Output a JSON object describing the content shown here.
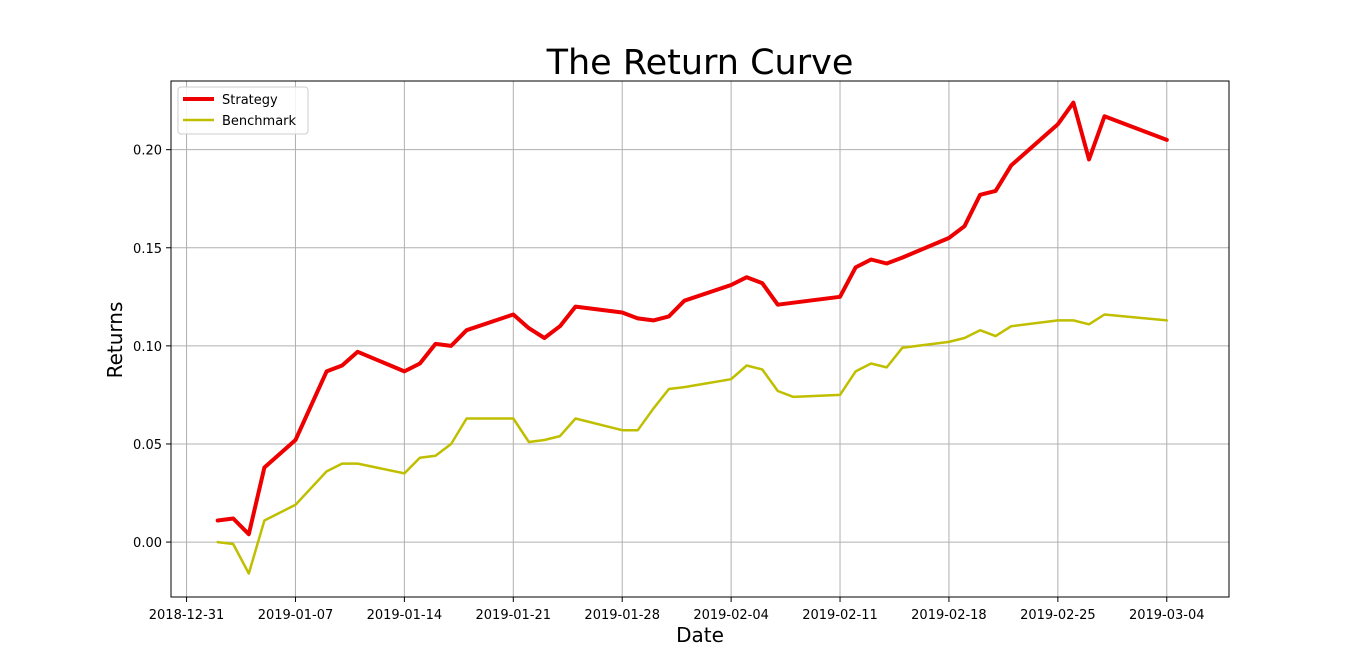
{
  "chart_data": {
    "type": "line",
    "title": "The Return Curve",
    "xlabel": "Date",
    "ylabel": "Returns",
    "xlim": [
      "2018-12-30",
      "2019-03-08"
    ],
    "ylim": [
      -0.028,
      0.235
    ],
    "x_ticks": [
      "2018-12-31",
      "2019-01-07",
      "2019-01-14",
      "2019-01-21",
      "2019-01-28",
      "2019-02-04",
      "2019-02-11",
      "2019-02-18",
      "2019-02-25",
      "2019-03-04"
    ],
    "y_ticks": [
      0.0,
      0.05,
      0.1,
      0.15,
      0.2
    ],
    "y_tick_labels": [
      "0.00",
      "0.05",
      "0.10",
      "0.15",
      "0.20"
    ],
    "grid": true,
    "legend": "top-left",
    "dates": [
      "2019-01-02",
      "2019-01-03",
      "2019-01-04",
      "2019-01-05",
      "2019-01-07",
      "2019-01-09",
      "2019-01-10",
      "2019-01-11",
      "2019-01-14",
      "2019-01-15",
      "2019-01-16",
      "2019-01-17",
      "2019-01-18",
      "2019-01-21",
      "2019-01-22",
      "2019-01-23",
      "2019-01-24",
      "2019-01-25",
      "2019-01-28",
      "2019-01-29",
      "2019-01-30",
      "2019-01-31",
      "2019-02-01",
      "2019-02-04",
      "2019-02-05",
      "2019-02-06",
      "2019-02-07",
      "2019-02-08",
      "2019-02-11",
      "2019-02-12",
      "2019-02-13",
      "2019-02-14",
      "2019-02-15",
      "2019-02-18",
      "2019-02-19",
      "2019-02-20",
      "2019-02-21",
      "2019-02-22",
      "2019-02-25",
      "2019-02-26",
      "2019-02-27",
      "2019-02-28",
      "2019-03-04"
    ],
    "series": [
      {
        "name": "Strategy",
        "color": "#ee0000",
        "width": 4,
        "values": [
          0.011,
          0.012,
          0.004,
          0.038,
          0.052,
          0.087,
          0.09,
          0.097,
          0.087,
          0.091,
          0.101,
          0.1,
          0.108,
          0.116,
          0.109,
          0.104,
          0.11,
          0.12,
          0.117,
          0.114,
          0.113,
          0.115,
          0.123,
          0.131,
          0.135,
          0.132,
          0.121,
          0.122,
          0.125,
          0.14,
          0.144,
          0.142,
          0.145,
          0.155,
          0.161,
          0.177,
          0.179,
          0.192,
          0.213,
          0.224,
          0.195,
          0.217,
          0.205
        ]
      },
      {
        "name": "Benchmark",
        "color": "#bfbf00",
        "width": 2.5,
        "values": [
          0.0,
          -0.001,
          -0.016,
          0.011,
          0.019,
          0.036,
          0.04,
          0.04,
          0.035,
          0.043,
          0.044,
          0.05,
          0.063,
          0.063,
          0.051,
          0.052,
          0.054,
          0.063,
          0.057,
          0.057,
          0.068,
          0.078,
          0.079,
          0.083,
          0.09,
          0.088,
          0.077,
          0.074,
          0.075,
          0.087,
          0.091,
          0.089,
          0.099,
          0.102,
          0.104,
          0.108,
          0.105,
          0.11,
          0.113,
          0.113,
          0.111,
          0.116,
          0.113
        ]
      }
    ]
  }
}
